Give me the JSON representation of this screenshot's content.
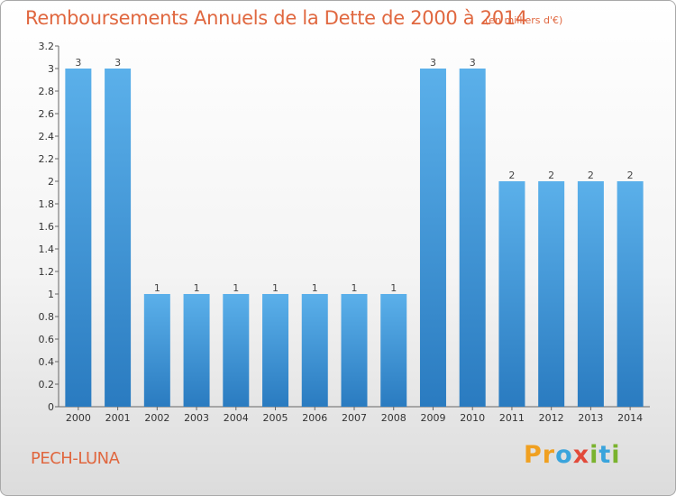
{
  "title": "Remboursements Annuels de la Dette de 2000 à 2014",
  "unit": "(en milliers d'€)",
  "place": "PECH-LUNA",
  "logo": {
    "p": "P",
    "r": "r",
    "o": "o",
    "x": "x",
    "i": "i",
    "t": "t",
    "i2": "i"
  },
  "colors": {
    "title": "#e0673f",
    "bar_light": "#5bb0ea",
    "bar_dark": "#2a7bc0"
  },
  "chart_data": {
    "type": "bar",
    "title": "Remboursements Annuels de la Dette de 2000 à 2014",
    "subtitle": "(en milliers d'€)",
    "xlabel": "",
    "ylabel": "",
    "categories": [
      "2000",
      "2001",
      "2002",
      "2003",
      "2004",
      "2005",
      "2006",
      "2007",
      "2008",
      "2009",
      "2010",
      "2011",
      "2012",
      "2013",
      "2014"
    ],
    "values": [
      3,
      3,
      1,
      1,
      1,
      1,
      1,
      1,
      1,
      3,
      3,
      2,
      2,
      2,
      2
    ],
    "data_labels": [
      "3",
      "3",
      "1",
      "1",
      "1",
      "1",
      "1",
      "1",
      "1",
      "3",
      "3",
      "2",
      "2",
      "2",
      "2"
    ],
    "yticks": [
      0,
      0.2,
      0.4,
      0.6,
      0.8,
      1,
      1.2,
      1.4,
      1.6,
      1.8,
      2,
      2.2,
      2.4,
      2.6,
      2.8,
      3,
      3.2
    ],
    "ytick_labels": [
      "0",
      "0.2",
      "0.4",
      "0.6",
      "0.8",
      "1",
      "1.2",
      "1.4",
      "1.6",
      "1.8",
      "2",
      "2.2",
      "2.4",
      "2.6",
      "2.8",
      "3",
      "3.2"
    ],
    "ylim": [
      0,
      3.2
    ],
    "grid": false,
    "legend": "none"
  }
}
